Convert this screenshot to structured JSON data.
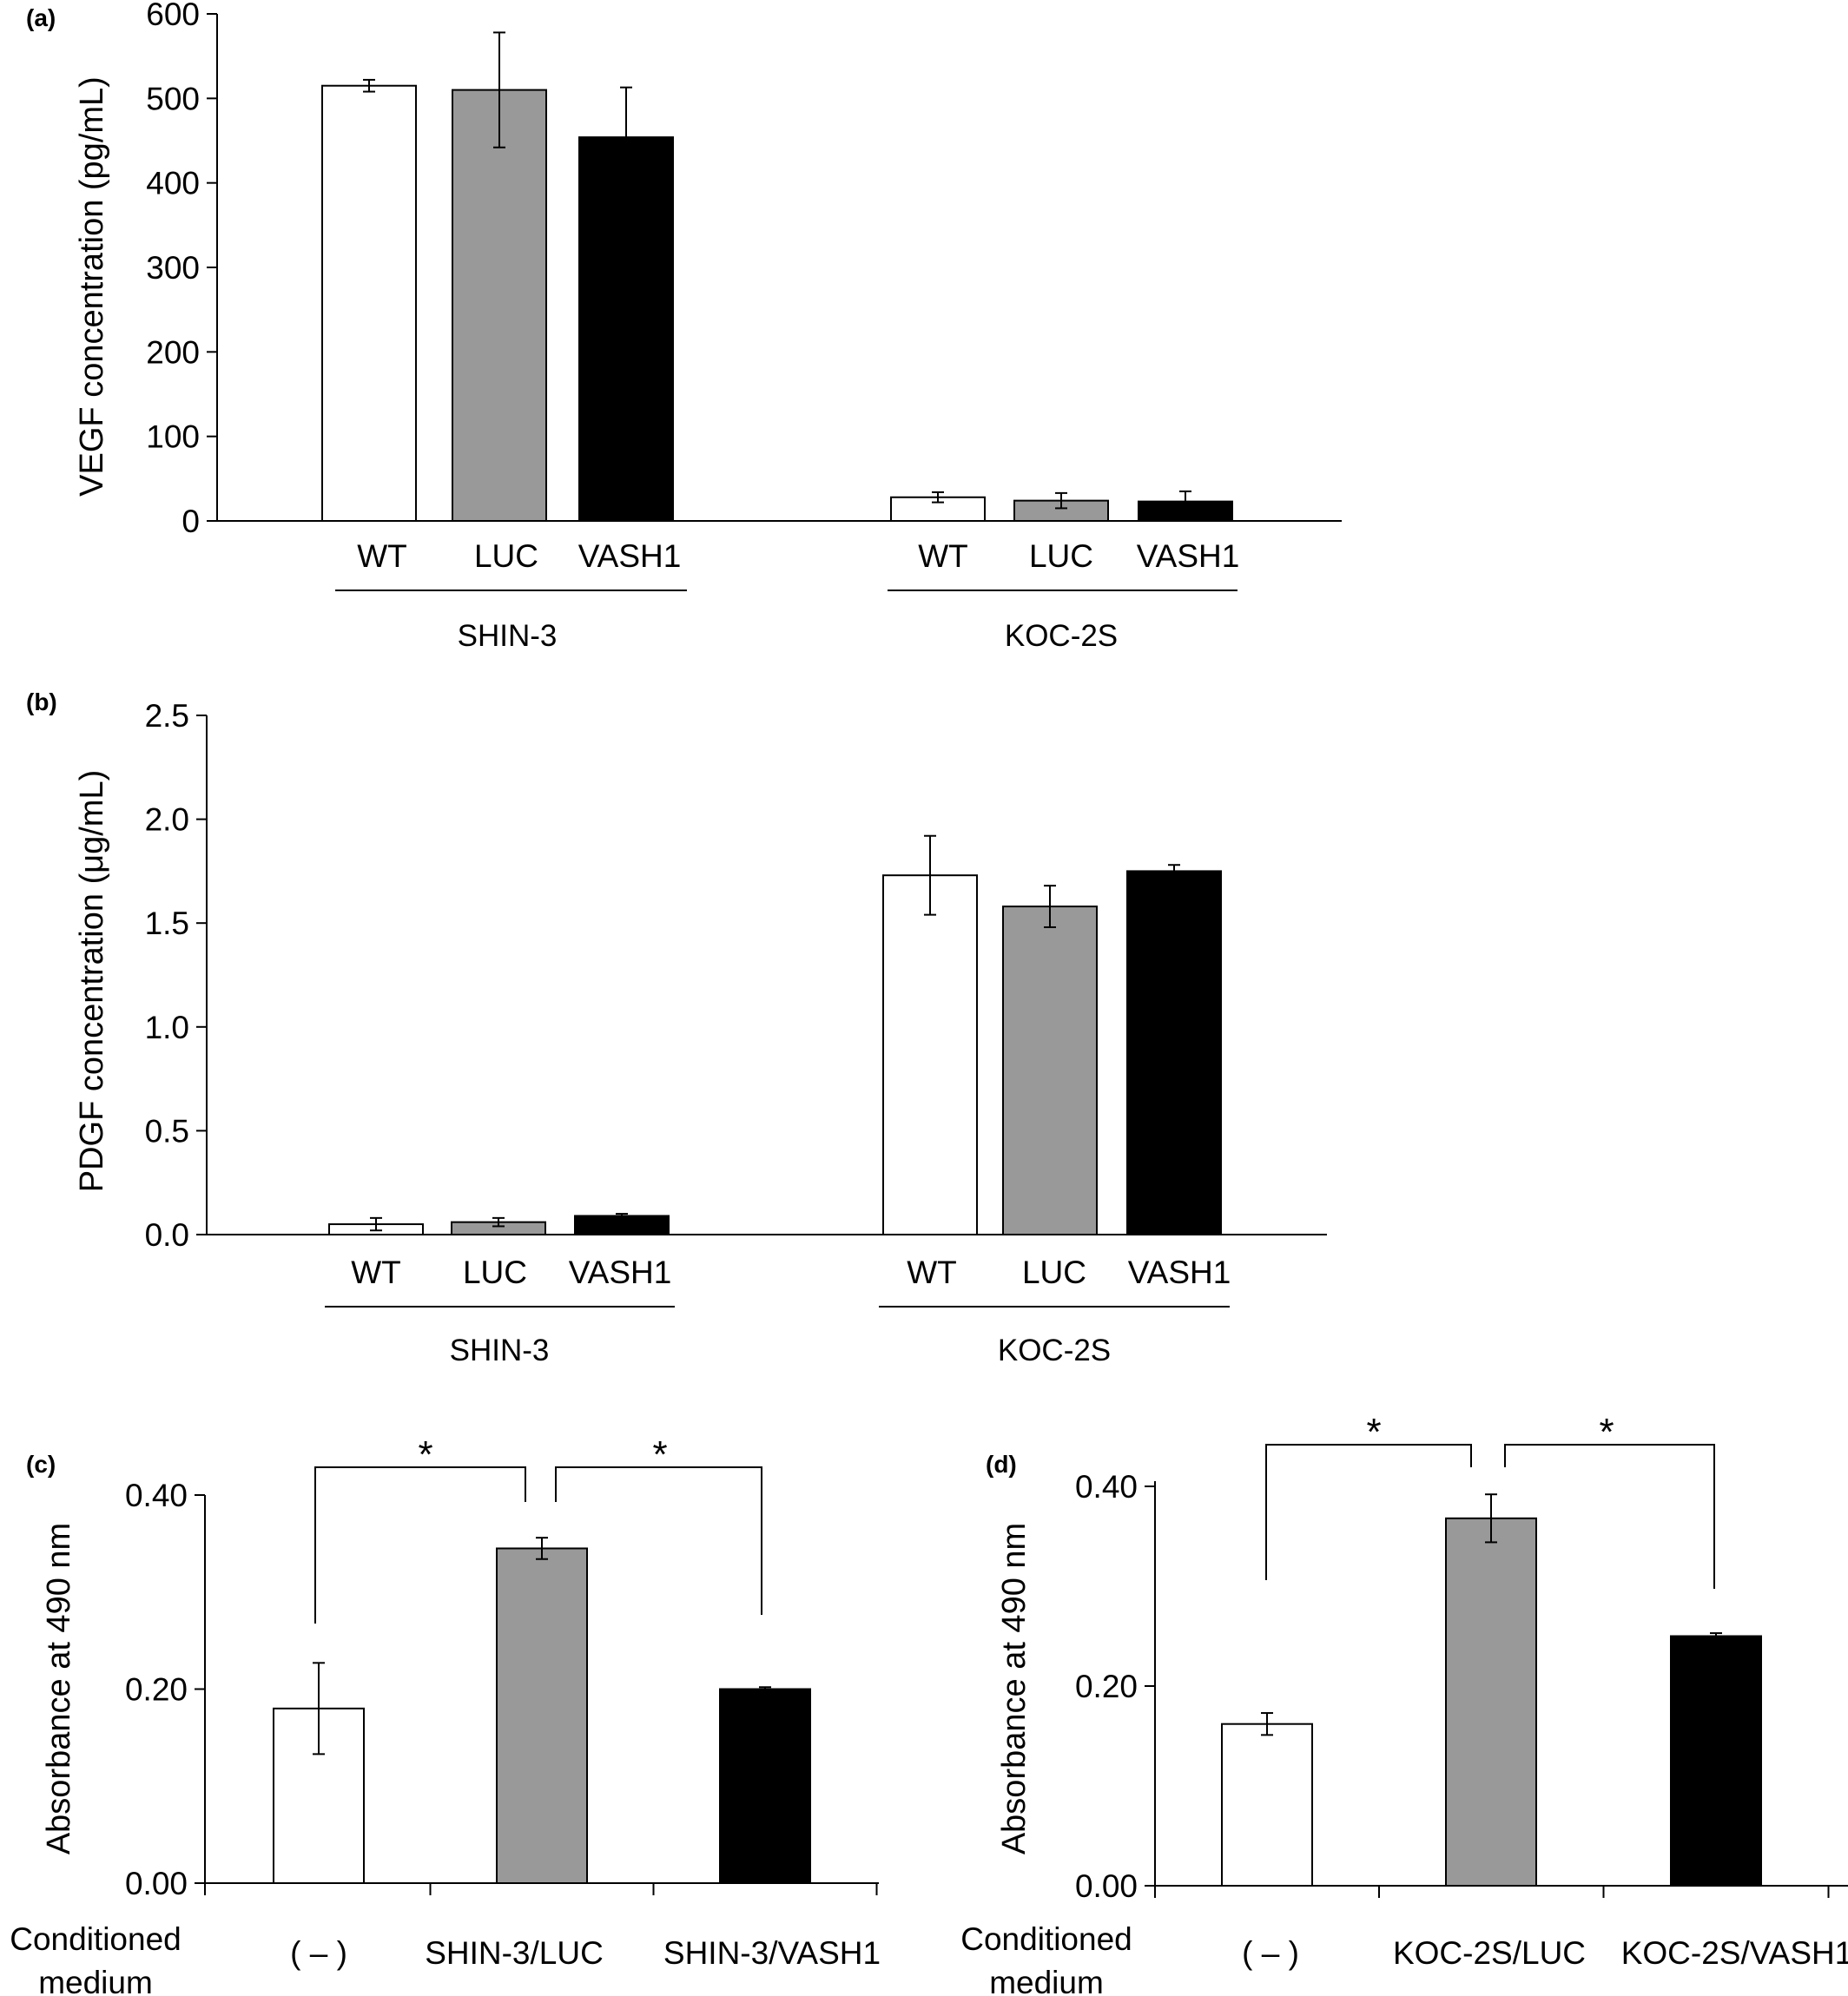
{
  "colors": {
    "WT": "#ffffff",
    "LUC": "#999999",
    "VASH1": "#000000",
    "edge": "#000000"
  },
  "chart_data": [
    {
      "panel": "(a)",
      "type": "bar",
      "ylabel": "VEGF concentration (pg/mL)",
      "ylim": [
        0,
        600
      ],
      "yticks": [
        "0",
        "100",
        "200",
        "300",
        "400",
        "500",
        "600"
      ],
      "categories": [
        "WT",
        "LUC",
        "VASH1"
      ],
      "groups": [
        {
          "name": "SHIN-3",
          "values": [
            515,
            510,
            454
          ],
          "errors": [
            7,
            68,
            59
          ]
        },
        {
          "name": "KOC-2S",
          "values": [
            28,
            24,
            23
          ],
          "errors": [
            6,
            9,
            12
          ]
        }
      ]
    },
    {
      "panel": "(b)",
      "type": "bar",
      "ylabel": "PDGF concentration (μg/mL)",
      "ylim": [
        0,
        2.5
      ],
      "yticks": [
        "0.0",
        "0.5",
        "1.0",
        "1.5",
        "2.0",
        "2.5"
      ],
      "categories": [
        "WT",
        "LUC",
        "VASH1"
      ],
      "groups": [
        {
          "name": "SHIN-3",
          "values": [
            0.05,
            0.06,
            0.09
          ],
          "errors": [
            0.03,
            0.02,
            0.01
          ]
        },
        {
          "name": "KOC-2S",
          "values": [
            1.73,
            1.58,
            1.75
          ],
          "errors": [
            0.19,
            0.1,
            0.03
          ]
        }
      ]
    },
    {
      "panel": "(c)",
      "type": "bar",
      "ylabel": "Absorbance at 490 nm",
      "ylim": [
        0,
        0.4
      ],
      "yticks": [
        "0.00",
        "0.20",
        "0.40"
      ],
      "row_label": [
        "Conditioned",
        "medium"
      ],
      "categories": [
        "( – )",
        "SHIN-3/LUC",
        "SHIN-3/VASH1"
      ],
      "values": [
        0.18,
        0.345,
        0.2
      ],
      "errors": [
        0.047,
        0.011,
        0.002
      ],
      "significance": [
        "*",
        "*"
      ]
    },
    {
      "panel": "(d)",
      "type": "bar",
      "ylabel": "Absorbance at 490 nm",
      "ylim": [
        0,
        0.4
      ],
      "yticks": [
        "0.00",
        "0.20",
        "0.40"
      ],
      "row_label": [
        "Conditioned",
        "medium"
      ],
      "categories": [
        "( – )",
        "KOC-2S/LUC",
        "KOC-2S/VASH1"
      ],
      "values": [
        0.162,
        0.368,
        0.25
      ],
      "errors": [
        0.011,
        0.024,
        0.003
      ],
      "significance": [
        "*",
        "*"
      ]
    }
  ]
}
